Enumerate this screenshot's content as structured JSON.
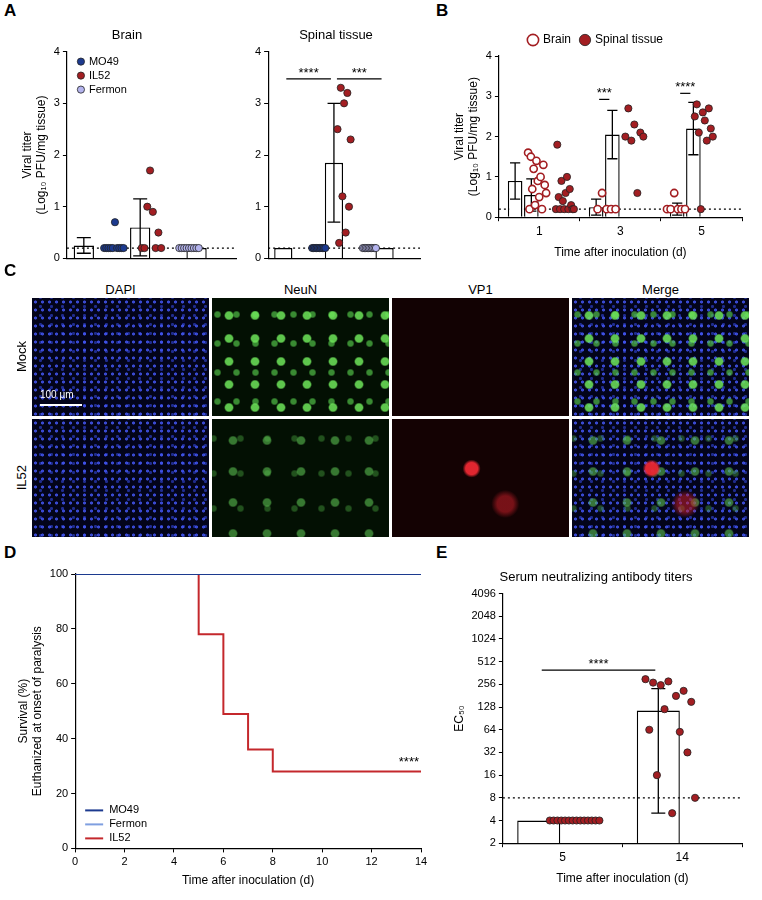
{
  "chart_data": [
    {
      "panel": "A",
      "type": "bar",
      "title": "Brain",
      "y_label": [
        "Viral titer",
        "(Log₁₀ PFU/mg tissue)"
      ],
      "ylim": [
        0,
        4
      ],
      "yticks": [
        0,
        1,
        2,
        3,
        4
      ],
      "grid": false,
      "tick_labels": "y",
      "legend": "top-left",
      "detection_limit": 0.2,
      "series": [
        {
          "name": "MO49",
          "color": "#1c3a8f",
          "value": 0.25,
          "error": 0.15,
          "points": [
            0.2,
            0.2,
            0.2,
            0.2,
            0.2,
            0.7,
            0.2,
            0.2,
            0.2,
            0.2
          ]
        },
        {
          "name": "IL52",
          "color": "#a31e22",
          "value": 0.6,
          "error": 0.55,
          "points": [
            0.2,
            0.2,
            1.0,
            1.7,
            0.9,
            0.2,
            0.5,
            0.2
          ]
        },
        {
          "name": "Fermon",
          "color": "#b4b4ee",
          "value": 0.2,
          "error": 0,
          "points": [
            0.2,
            0.2,
            0.2,
            0.2,
            0.2,
            0.2,
            0.2,
            0.2,
            0.2
          ]
        }
      ]
    },
    {
      "panel": "A",
      "type": "bar",
      "title": "Spinal tissue",
      "ylim": [
        0,
        4
      ],
      "yticks": [
        0,
        1,
        2,
        3,
        4
      ],
      "grid": false,
      "tick_labels": "y",
      "detection_limit": 0.2,
      "series": [
        {
          "name": "MO49",
          "color": "#1c3a8f",
          "value": 0.2,
          "error": 0,
          "points": [
            0.2,
            0.2,
            0.2,
            0.2,
            0.2,
            0.2,
            0.2,
            0.2,
            0.2,
            0.2
          ]
        },
        {
          "name": "IL52",
          "color": "#a31e22",
          "value": 1.85,
          "error": 1.15,
          "points": [
            2.5,
            0.3,
            3.3,
            1.2,
            3.0,
            0.5,
            3.2,
            1.0,
            2.3
          ]
        },
        {
          "name": "Fermon",
          "color": "#b4b4ee",
          "value": 0.2,
          "error": 0,
          "points": [
            0.2,
            0.2,
            0.2,
            0.2,
            0.2,
            0.2,
            0.2,
            0.2,
            0.2,
            0.2
          ]
        }
      ],
      "significance": [
        {
          "from": "MO49",
          "to": "IL52",
          "label": "****"
        },
        {
          "from": "IL52",
          "to": "Fermon",
          "label": "***"
        }
      ]
    },
    {
      "panel": "B",
      "type": "bar",
      "categories": [
        "1",
        "3",
        "5"
      ],
      "x_label": "Time after inoculation (d)",
      "y_label": [
        "Viral titer",
        "(Log₁₀ PFU/mg tissue)"
      ],
      "ylim": [
        0,
        4
      ],
      "yticks": [
        0,
        1,
        2,
        3,
        4
      ],
      "grid": false,
      "legend": "top",
      "detection_limit": 0.2,
      "series": [
        {
          "name": "Brain",
          "color": "#a31e22",
          "marker": "open_circle",
          "values": [
            0.9,
            0.25,
            0.2
          ],
          "errors": [
            0.45,
            0.2,
            0.15
          ],
          "points": [
            [
              1.6,
              0.2,
              1.5,
              0.7,
              1.2,
              0.3,
              1.4,
              0.9,
              0.5,
              1.0,
              0.2,
              1.3,
              0.8,
              0.6
            ],
            [
              0.2,
              0.6,
              0.2,
              0.2,
              0.2
            ],
            [
              0.2,
              0.2,
              0.6,
              0.2,
              0.2,
              0.2
            ]
          ]
        },
        {
          "name": "Spinal tissue",
          "color": "#a31e22",
          "marker": "circle",
          "values": [
            0.55,
            2.05,
            2.2
          ],
          "errors": [
            0.4,
            0.6,
            0.65
          ],
          "points": [
            [
              0.2,
              1.8,
              0.5,
              0.2,
              0.9,
              0.4,
              0.2,
              0.6,
              1.0,
              0.2,
              0.7,
              0.3,
              0.2,
              0.2
            ],
            [
              2.0,
              2.7,
              1.9,
              2.3,
              0.6,
              2.1,
              2.0
            ],
            [
              2.5,
              2.8,
              2.1,
              0.2,
              2.6,
              2.4,
              1.9,
              2.7,
              2.2,
              2.0
            ]
          ]
        }
      ],
      "significance": [
        {
          "category": "3",
          "label": "***"
        },
        {
          "category": "5",
          "label": "****"
        }
      ]
    },
    {
      "panel": "C",
      "type": "image_grid",
      "columns": [
        "DAPI",
        "NeuN",
        "VP1",
        "Merge"
      ],
      "rows": [
        "Mock",
        "IL52"
      ],
      "scale_bar": "100 μm"
    },
    {
      "panel": "D",
      "type": "line",
      "x_label": "Time after inoculation (d)",
      "y_label": [
        "Survival (%)",
        "Euthanized at onset of paralysis"
      ],
      "xlim": [
        0,
        14
      ],
      "xticks": [
        0,
        2,
        4,
        6,
        8,
        10,
        12,
        14
      ],
      "ylim": [
        0,
        100
      ],
      "yticks": [
        0,
        20,
        40,
        60,
        80,
        100
      ],
      "grid": false,
      "legend": "bottom-left",
      "line_style": "step",
      "series": [
        {
          "name": "MO49",
          "color": "#1c3a8f",
          "x": [
            0,
            14
          ],
          "y": [
            100,
            100
          ]
        },
        {
          "name": "Fermon",
          "color": "#7f9fe0",
          "x": [
            0,
            14
          ],
          "y": [
            100,
            100
          ]
        },
        {
          "name": "IL52",
          "color": "#c4282c",
          "x": [
            0,
            5,
            6,
            7,
            8,
            14
          ],
          "y": [
            100,
            78,
            49,
            36,
            28,
            28
          ]
        }
      ],
      "significance": {
        "series": "IL52",
        "label": "****"
      }
    },
    {
      "panel": "E",
      "type": "bar",
      "title": "Serum neutralizing antibody titers",
      "categories": [
        "5",
        "14"
      ],
      "x_label": "Time after inoculation (d)",
      "y_label": "EC₅₀",
      "log": "y",
      "ylim": [
        2,
        4096
      ],
      "yticks": [
        2,
        4,
        8,
        16,
        32,
        64,
        128,
        256,
        512,
        1024,
        2048,
        4096
      ],
      "grid": false,
      "detection_limit": 8,
      "series": [
        {
          "color": "#a31e22",
          "values": [
            4,
            115
          ],
          "errors": [
            0,
            110
          ],
          "points": [
            [
              4,
              4,
              4,
              4,
              4,
              4,
              4,
              4,
              4,
              4,
              4,
              4,
              4,
              4
            ],
            [
              300,
              64,
              270,
              16,
              250,
              120,
              280,
              5,
              180,
              60,
              210,
              32,
              150,
              8
            ]
          ]
        }
      ],
      "significance": [
        {
          "from": "5",
          "to": "14",
          "label": "****"
        }
      ]
    }
  ]
}
